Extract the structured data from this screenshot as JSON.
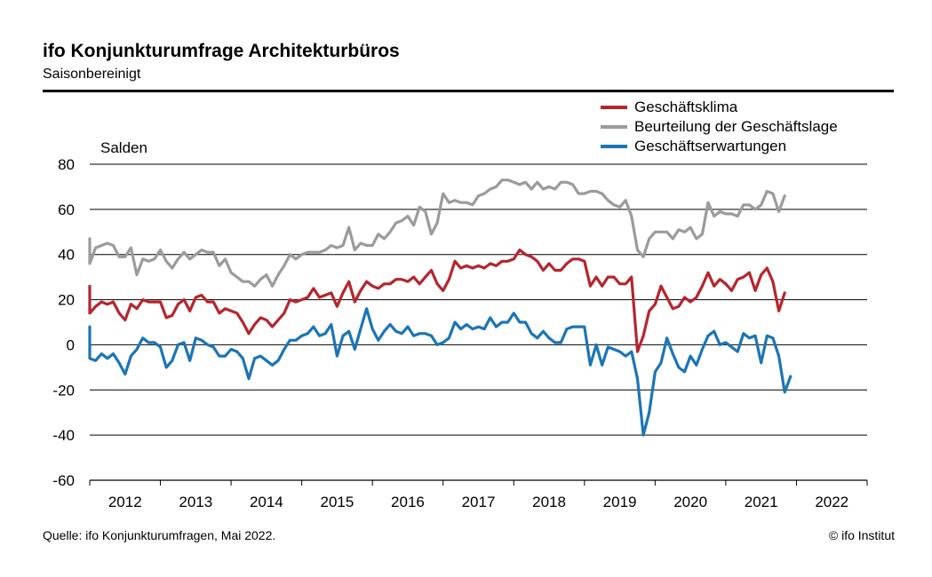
{
  "header": {
    "title": "ifo Konjunkturumfrage Architekturbüros",
    "subtitle": "Saisonbereinigt"
  },
  "footer": {
    "source": "Quelle: ifo Konjunkturumfragen, Mai 2022.",
    "copyright": "© ifo Institut"
  },
  "chart_data": {
    "type": "line",
    "ylabel": "Salden",
    "ylim": [
      -60,
      80
    ],
    "yticks": [
      80,
      60,
      40,
      20,
      0,
      -20,
      -40,
      -60
    ],
    "grid": true,
    "legend_position": "top-right",
    "x_start": "2011-06",
    "x_end": "2022-05",
    "frequency": "monthly",
    "year_labels": [
      "2012",
      "2013",
      "2014",
      "2015",
      "2016",
      "2017",
      "2018",
      "2019",
      "2020",
      "2021",
      "2022"
    ],
    "series": [
      {
        "name": "Geschäftsklima",
        "color": "#b5262e",
        "values": [
          19,
          21,
          26,
          21,
          20,
          20,
          22,
          14,
          17,
          19,
          18,
          19,
          14,
          11,
          18,
          16,
          20,
          19,
          19,
          19,
          12,
          13,
          18,
          20,
          15,
          21,
          22,
          19,
          19,
          14,
          16,
          15,
          14,
          10,
          5,
          9,
          12,
          11,
          8,
          11,
          14,
          20,
          19,
          20,
          21,
          25,
          21,
          22,
          23,
          17,
          23,
          28,
          19,
          24,
          28,
          26,
          25,
          27,
          27,
          29,
          29,
          28,
          30,
          27,
          30,
          33,
          27,
          24,
          29,
          37,
          34,
          35,
          34,
          35,
          34,
          36,
          35,
          37,
          37,
          38,
          42,
          40,
          39,
          37,
          33,
          36,
          33,
          33,
          36,
          38,
          38,
          37,
          26,
          30,
          26,
          30,
          30,
          27,
          27,
          30,
          -3,
          4,
          15,
          18,
          26,
          21,
          16,
          17,
          21,
          19,
          21,
          26,
          32,
          26,
          29,
          27,
          24,
          29,
          30,
          32,
          24,
          31,
          34,
          28,
          15,
          23
        ]
      },
      {
        "name": "Beurteilung der Geschäftslage",
        "color": "#9b9b9b",
        "values": [
          45,
          41,
          44,
          47,
          43,
          46,
          46,
          36,
          43,
          44,
          45,
          44,
          39,
          39,
          43,
          31,
          38,
          37,
          38,
          42,
          37,
          34,
          38,
          41,
          38,
          40,
          42,
          41,
          41,
          35,
          38,
          32,
          30,
          28,
          28,
          26,
          29,
          31,
          26,
          31,
          35,
          40,
          38,
          40,
          41,
          41,
          41,
          42,
          44,
          43,
          44,
          52,
          42,
          45,
          44,
          44,
          49,
          47,
          50,
          54,
          55,
          57,
          53,
          61,
          59,
          49,
          54,
          67,
          63,
          64,
          63,
          63,
          62,
          66,
          67,
          69,
          70,
          73,
          73,
          72,
          71,
          72,
          69,
          72,
          69,
          70,
          69,
          72,
          72,
          71,
          67,
          67,
          68,
          68,
          67,
          64,
          62,
          61,
          64,
          57,
          42,
          39,
          47,
          50,
          50,
          50,
          47,
          51,
          50,
          52,
          47,
          49,
          63,
          57,
          59,
          58,
          58,
          57,
          62,
          62,
          60,
          62,
          68,
          67,
          59,
          66
        ]
      },
      {
        "name": "Geschäftserwartungen",
        "color": "#1b75b6",
        "values": [
          -4,
          4,
          8,
          -2,
          -2,
          -3,
          0,
          -6,
          -7,
          -4,
          -6,
          -4,
          -8,
          -13,
          -5,
          -2,
          3,
          1,
          1,
          -1,
          -10,
          -7,
          0,
          1,
          -7,
          3,
          2,
          0,
          -1,
          -5,
          -5,
          -2,
          -3,
          -6,
          -15,
          -6,
          -5,
          -7,
          -9,
          -7,
          -2,
          2,
          2,
          4,
          5,
          8,
          4,
          5,
          9,
          -5,
          4,
          6,
          -2,
          7,
          16,
          7,
          2,
          6,
          9,
          6,
          5,
          8,
          4,
          5,
          5,
          4,
          0,
          1,
          3,
          10,
          7,
          9,
          7,
          8,
          7,
          12,
          8,
          10,
          10,
          14,
          10,
          10,
          5,
          3,
          6,
          3,
          1,
          1,
          7,
          8,
          8,
          8,
          -9,
          0,
          -9,
          -1,
          -2,
          -3,
          -5,
          -3,
          -15,
          -40,
          -30,
          -12,
          -8,
          3,
          -4,
          -10,
          -12,
          -5,
          -9,
          -2,
          4,
          6,
          0,
          1,
          -1,
          -3,
          5,
          3,
          4,
          -8,
          4,
          3,
          -5,
          -21,
          -14
        ]
      }
    ]
  }
}
